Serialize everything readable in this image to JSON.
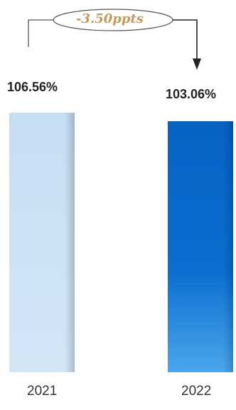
{
  "chart_data": {
    "type": "bar",
    "categories": [
      "2021",
      "2022"
    ],
    "values": [
      106.56,
      103.06
    ],
    "value_labels": [
      "106.56%",
      "103.06%"
    ],
    "annotation": "-3.50ppts",
    "colors": [
      "#cfe3f5",
      "#0a6fcf"
    ],
    "annotation_color": "#c49a5a",
    "grid": false
  }
}
